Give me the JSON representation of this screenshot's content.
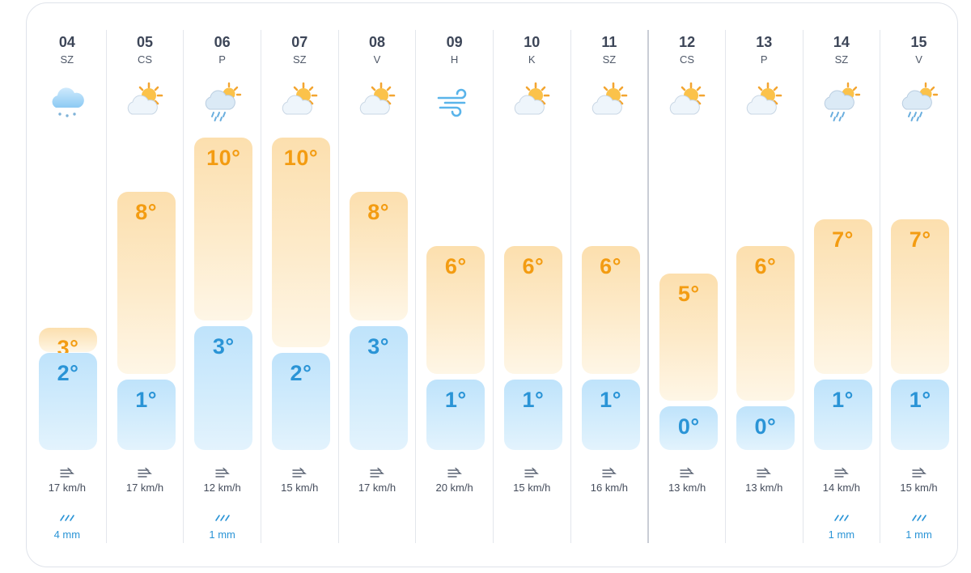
{
  "forecast": {
    "colors": {
      "high_temp": "#f39c12",
      "low_temp": "#2a94d6",
      "high_bar": "#fcdfae",
      "low_bar": "#bfe3fb",
      "divider": "#e3e6ec"
    },
    "days": [
      {
        "day": "04",
        "abbr": "SZ",
        "icon": "rain-cloud-icon",
        "high": "3°",
        "low": "2°",
        "high_value": 3,
        "low_value": 2,
        "wind": "17 km/h",
        "rain": "4 mm"
      },
      {
        "day": "05",
        "abbr": "CS",
        "icon": "partly-cloudy-icon",
        "high": "8°",
        "low": "1°",
        "high_value": 8,
        "low_value": 1,
        "wind": "17 km/h",
        "rain": ""
      },
      {
        "day": "06",
        "abbr": "P",
        "icon": "sun-rain-icon",
        "high": "10°",
        "low": "3°",
        "high_value": 10,
        "low_value": 3,
        "wind": "12 km/h",
        "rain": "1 mm"
      },
      {
        "day": "07",
        "abbr": "SZ",
        "icon": "partly-cloudy-icon",
        "high": "10°",
        "low": "2°",
        "high_value": 10,
        "low_value": 2,
        "wind": "15 km/h",
        "rain": ""
      },
      {
        "day": "08",
        "abbr": "V",
        "icon": "partly-cloudy-icon",
        "high": "8°",
        "low": "3°",
        "high_value": 8,
        "low_value": 3,
        "wind": "17 km/h",
        "rain": ""
      },
      {
        "day": "09",
        "abbr": "H",
        "icon": "wind-icon",
        "high": "6°",
        "low": "1°",
        "high_value": 6,
        "low_value": 1,
        "wind": "20 km/h",
        "rain": ""
      },
      {
        "day": "10",
        "abbr": "K",
        "icon": "partly-cloudy-icon",
        "high": "6°",
        "low": "1°",
        "high_value": 6,
        "low_value": 1,
        "wind": "15 km/h",
        "rain": ""
      },
      {
        "day": "11",
        "abbr": "SZ",
        "icon": "partly-cloudy-icon",
        "high": "6°",
        "low": "1°",
        "high_value": 6,
        "low_value": 1,
        "wind": "16 km/h",
        "rain": ""
      },
      {
        "day": "12",
        "abbr": "CS",
        "icon": "partly-cloudy-icon",
        "high": "5°",
        "low": "0°",
        "high_value": 5,
        "low_value": 0,
        "wind": "13 km/h",
        "rain": ""
      },
      {
        "day": "13",
        "abbr": "P",
        "icon": "partly-cloudy-icon",
        "high": "6°",
        "low": "0°",
        "high_value": 6,
        "low_value": 0,
        "wind": "13 km/h",
        "rain": ""
      },
      {
        "day": "14",
        "abbr": "SZ",
        "icon": "sun-rain-icon",
        "high": "7°",
        "low": "1°",
        "high_value": 7,
        "low_value": 1,
        "wind": "14 km/h",
        "rain": "1 mm"
      },
      {
        "day": "15",
        "abbr": "V",
        "icon": "sun-rain-icon",
        "high": "7°",
        "low": "1°",
        "high_value": 7,
        "low_value": 1,
        "wind": "15 km/h",
        "rain": "1 mm"
      }
    ]
  }
}
